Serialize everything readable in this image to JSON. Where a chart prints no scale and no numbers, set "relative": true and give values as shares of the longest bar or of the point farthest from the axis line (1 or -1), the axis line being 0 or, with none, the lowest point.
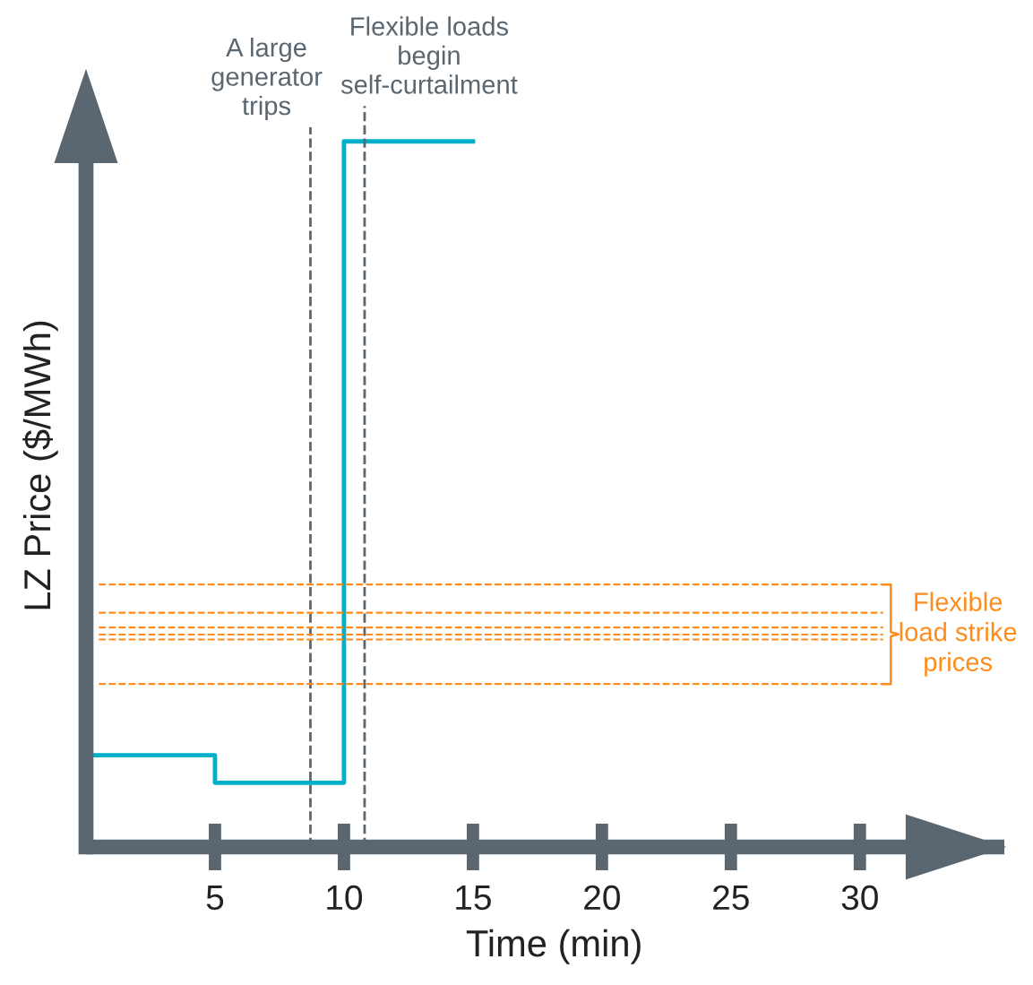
{
  "chart_data": {
    "type": "step",
    "relative": true,
    "xlabel": "Time (min)",
    "ylabel": "LZ Price ($/MWh)",
    "x": [
      0,
      5,
      10,
      15
    ],
    "series": [
      {
        "color": "#00b0c8",
        "values": [
          0.13,
          0.091,
          1,
          1
        ]
      }
    ],
    "xlim": [
      0,
      35.6
    ],
    "xticks": [
      5,
      10,
      15,
      20,
      25,
      30
    ],
    "ref_lines": [
      {
        "axis": "x",
        "value": 8.7,
        "label": "A large generator trips",
        "color": "#5a6670",
        "line_style": "dashed"
      },
      {
        "axis": "x",
        "value": 10.8,
        "label": "Flexible loads begin self-curtailment",
        "color": "#5a6670",
        "line_style": "dashed"
      },
      {
        "axis": "y",
        "value": 0.372,
        "color": "#ff8c1a",
        "line_style": "dashed"
      },
      {
        "axis": "y",
        "value": 0.332,
        "color": "#ff8c1a",
        "line_style": "dashed"
      },
      {
        "axis": "y",
        "value": 0.311,
        "color": "#ff8c1a",
        "line_style": "dashed"
      },
      {
        "axis": "y",
        "value": 0.301,
        "color": "#ff8c1a",
        "line_style": "dashed"
      },
      {
        "axis": "y",
        "value": 0.294,
        "color": "#ff8c1a",
        "line_style": "dashed"
      },
      {
        "axis": "y",
        "value": 0.231,
        "color": "#ff8c1a",
        "line_style": "dashed"
      }
    ],
    "annotations": [
      "Flexible load strike prices"
    ],
    "grid": false,
    "legend": false
  }
}
